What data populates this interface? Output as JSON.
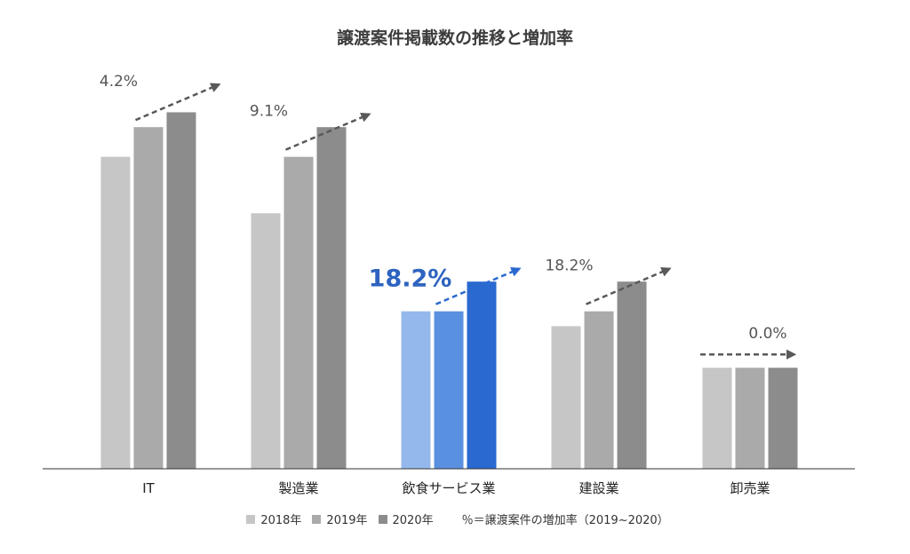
{
  "chart_data": {
    "type": "bar",
    "title": "譲渡案件掲載数の推移と増加率",
    "categories": [
      "IT",
      "製造業",
      "飲食サービス業",
      "建設業",
      "卸売業"
    ],
    "series": [
      {
        "name": "2018年",
        "values": [
          10.5,
          8.6,
          5.3,
          4.8,
          3.4
        ]
      },
      {
        "name": "2019年",
        "values": [
          11.5,
          10.5,
          5.3,
          5.3,
          3.4
        ]
      },
      {
        "name": "2020年",
        "values": [
          12.0,
          11.5,
          6.3,
          6.3,
          3.4
        ]
      }
    ],
    "growth_labels": [
      "4.2%",
      "9.1%",
      "18.2%",
      "18.2%",
      "0.0%"
    ],
    "highlight_category": "飲食サービス業",
    "colors": {
      "default": [
        "#c6c6c6",
        "#aaaaaa",
        "#8c8c8c"
      ],
      "highlight": [
        "#95b8ec",
        "#5a90e0",
        "#2a69cf"
      ],
      "highlight_text": "#2e63c0",
      "label_text": "#555555",
      "arrow": "#595959",
      "axis": "#333333"
    },
    "ylim": [
      0,
      13
    ],
    "grid": false,
    "legend_position": "bottom",
    "legend_note": "％＝譲渡案件の増加率（2019~2020）"
  }
}
